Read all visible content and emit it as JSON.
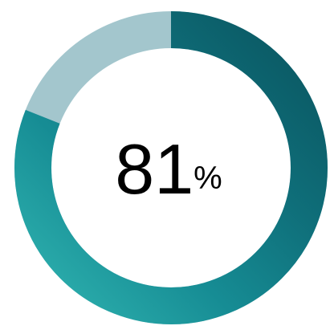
{
  "chart_data": {
    "type": "progress-ring",
    "value": 81,
    "unit": "%",
    "min": 0,
    "max": 100,
    "color": "#1f8f97",
    "track_color": "#a3c6cd"
  }
}
